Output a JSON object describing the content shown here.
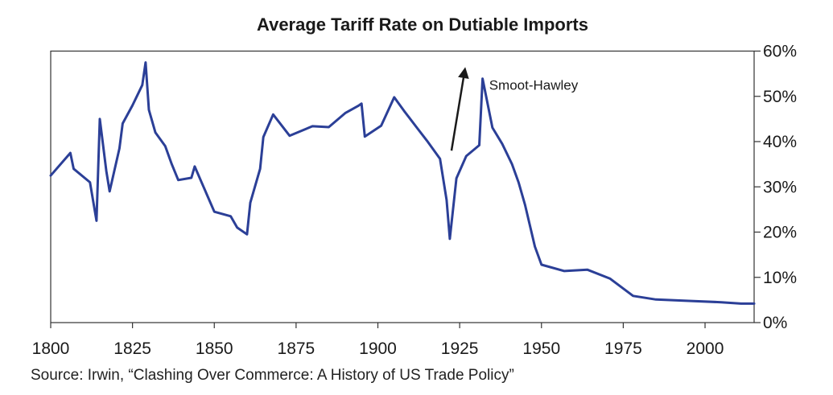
{
  "chart_data": {
    "type": "line",
    "title": "Average Tariff Rate on Dutiable Imports",
    "xlabel": "",
    "ylabel": "",
    "xlim": [
      1800,
      2015
    ],
    "ylim": [
      0,
      60
    ],
    "x_ticks": [
      1800,
      1825,
      1850,
      1875,
      1900,
      1925,
      1950,
      1975,
      2000
    ],
    "x_tick_labels": [
      "1800",
      "1825",
      "1850",
      "1875",
      "1900",
      "1925",
      "1950",
      "1975",
      "2000"
    ],
    "y_ticks": [
      0,
      10,
      20,
      30,
      40,
      50,
      60
    ],
    "y_tick_labels": [
      "0%",
      "10%",
      "20%",
      "30%",
      "40%",
      "50%",
      "60%"
    ],
    "y_axis_side": "right",
    "grid": false,
    "line_color": "#2b3f97",
    "series": [
      {
        "name": "Average tariff rate",
        "x": [
          1800,
          1806,
          1807,
          1812,
          1814,
          1815,
          1817,
          1818,
          1821,
          1822,
          1825,
          1828,
          1829,
          1830,
          1832,
          1835,
          1837,
          1839,
          1843,
          1844,
          1850,
          1855,
          1857,
          1860,
          1861,
          1864,
          1865,
          1868,
          1873,
          1880,
          1885,
          1890,
          1894,
          1895,
          1896,
          1901,
          1905,
          1908,
          1912,
          1915,
          1919,
          1921,
          1922,
          1924,
          1927,
          1931,
          1932,
          1935,
          1938,
          1941,
          1943,
          1945,
          1948,
          1950,
          1957,
          1964,
          1971,
          1978,
          1985,
          1995,
          2005,
          2011,
          2015
        ],
        "values": [
          32.5,
          37.5,
          34.0,
          31.0,
          22.5,
          45.0,
          33.5,
          29.0,
          38.5,
          44.0,
          48.0,
          52.5,
          57.5,
          47.0,
          42.0,
          39.0,
          35.0,
          31.5,
          32.0,
          34.5,
          24.5,
          23.5,
          21.0,
          19.5,
          26.5,
          34.0,
          41.0,
          46.0,
          41.3,
          43.4,
          43.2,
          46.3,
          47.9,
          48.4,
          41.1,
          43.5,
          49.8,
          46.8,
          43.0,
          40.2,
          36.2,
          27.1,
          18.5,
          31.9,
          36.8,
          39.2,
          53.9,
          43.1,
          39.5,
          35.0,
          31.0,
          26.0,
          16.8,
          12.8,
          11.4,
          11.7,
          9.7,
          5.9,
          5.1,
          4.8,
          4.5,
          4.2,
          4.2
        ]
      }
    ],
    "annotations": [
      {
        "text": "Smoot-Hawley",
        "x": 1934,
        "y": 51.5,
        "arrow_from": [
          1922.5,
          38.0
        ],
        "arrow_to": [
          1926.5,
          55.5
        ]
      }
    ]
  },
  "source_note": "Source: Irwin, “Clashing Over Commerce: A History of US Trade Policy”"
}
